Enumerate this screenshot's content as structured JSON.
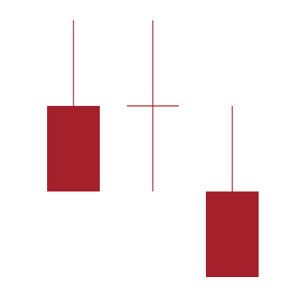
{
  "chart_data": {
    "type": "candlestick",
    "pattern": "bearish",
    "grid": false,
    "axes_visible": false,
    "candles": [
      {
        "open": 7,
        "high": 10,
        "low": 4,
        "close": 4,
        "color": "#a4202a"
      },
      {
        "open": 7,
        "high": 10,
        "low": 4,
        "close": 7,
        "color": "#a4202a"
      },
      {
        "open": 4,
        "high": 7,
        "low": 1,
        "close": 1,
        "color": "#a4202a"
      }
    ],
    "y_range": [
      1,
      10
    ]
  }
}
